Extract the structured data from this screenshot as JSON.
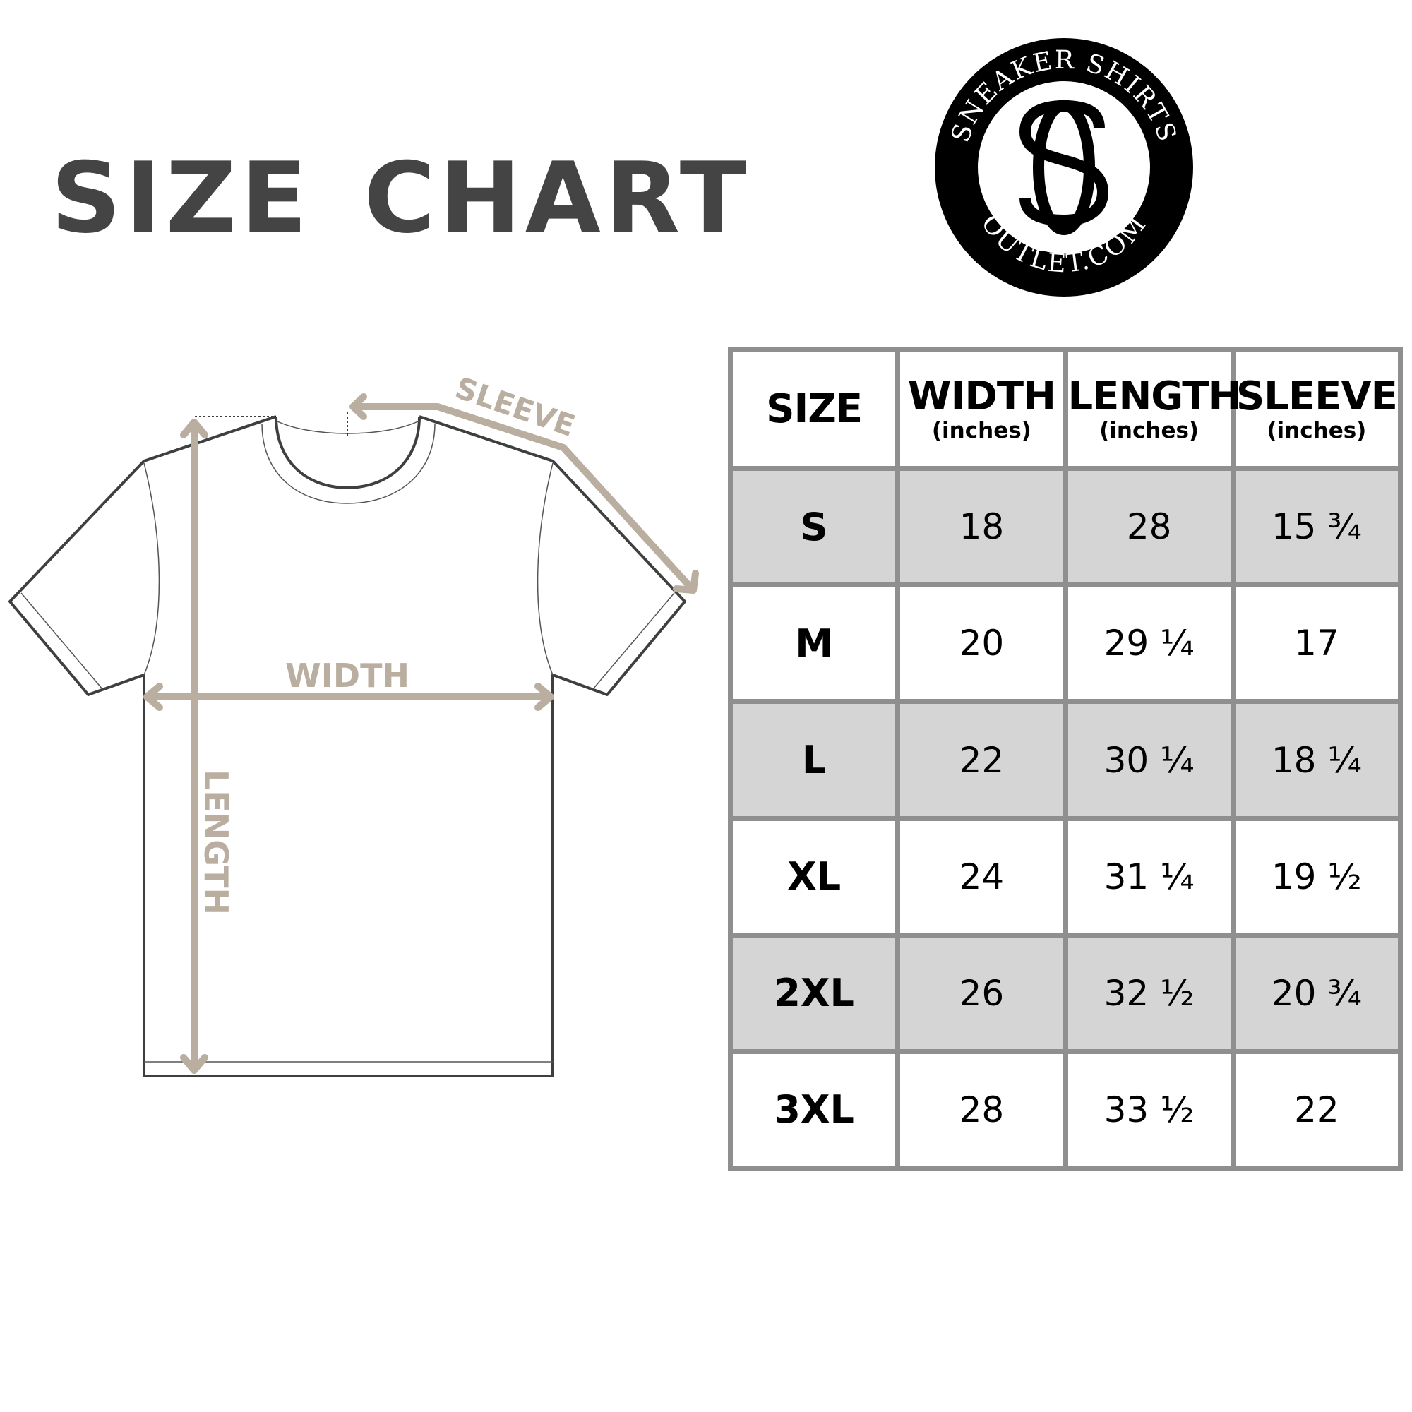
{
  "title": "SIZE CHART",
  "logo": {
    "top_text": "SNEAKER SHIRTS",
    "bottom_text": "OUTLET.COM",
    "monogram": "SO"
  },
  "diagram": {
    "sleeve_label": "SLEEVE",
    "width_label": "WIDTH",
    "length_label": "LENGTH",
    "arrow_color": "#b9ae9f"
  },
  "table": {
    "headers": [
      {
        "label": "SIZE",
        "unit": ""
      },
      {
        "label": "WIDTH",
        "unit": "(inches)"
      },
      {
        "label": "LENGTH",
        "unit": "(inches)"
      },
      {
        "label": "SLEEVE",
        "unit": "(inches)"
      }
    ],
    "rows": [
      [
        "S",
        "18",
        "28",
        "15 ¾"
      ],
      [
        "M",
        "20",
        "29 ¼",
        "17"
      ],
      [
        "L",
        "22",
        "30 ¼",
        "18 ¼"
      ],
      [
        "XL",
        "24",
        "31 ¼",
        "19 ½"
      ],
      [
        "2XL",
        "26",
        "32 ½",
        "20 ¾"
      ],
      [
        "3XL",
        "28",
        "33 ½",
        "22"
      ]
    ],
    "shade_color": "#d5d5d5",
    "border_color": "#8f8f8f"
  }
}
